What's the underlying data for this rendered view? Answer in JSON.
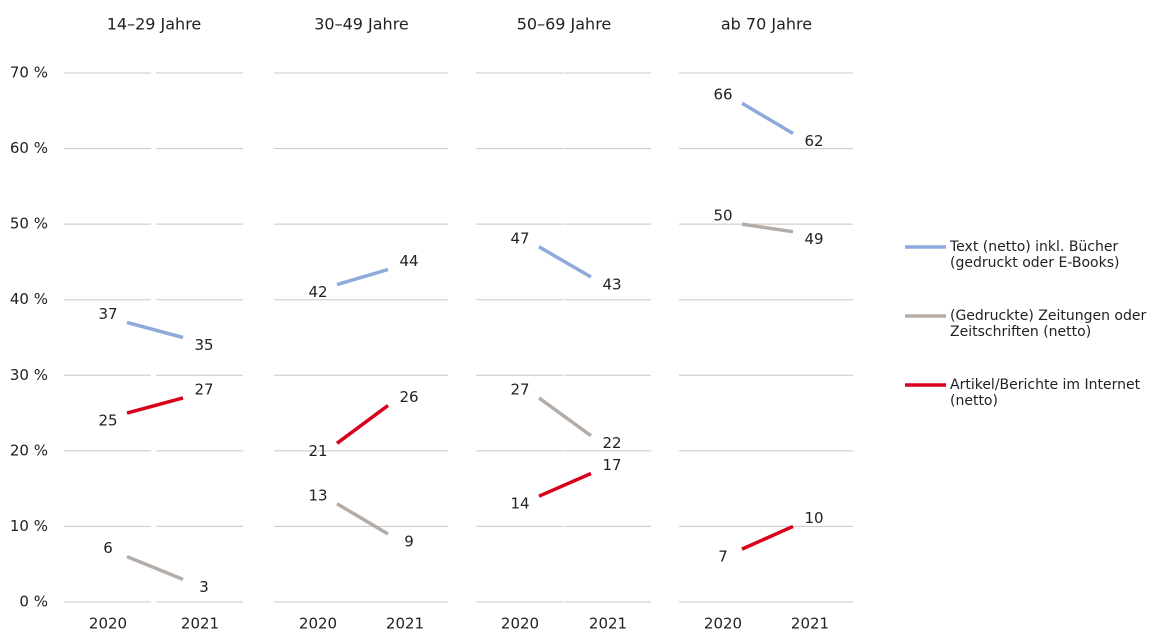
{
  "chart_data": {
    "type": "line",
    "categories": [
      "2020",
      "2021"
    ],
    "ylim": [
      0,
      70
    ],
    "yticks": [
      {
        "value": 0,
        "label": "0 %"
      },
      {
        "value": 10,
        "label": "10 %"
      },
      {
        "value": 20,
        "label": "20 %"
      },
      {
        "value": 30,
        "label": "30 %"
      },
      {
        "value": 40,
        "label": "40 %"
      },
      {
        "value": 50,
        "label": "50 %"
      },
      {
        "value": 60,
        "label": "60 %"
      },
      {
        "value": 70,
        "label": "70 %"
      }
    ],
    "grid": true,
    "series": [
      {
        "name": "Text (netto) inkl. Bücher (gedruckt oder E-Books)",
        "color": "#8eaadb"
      },
      {
        "name": "(Gedruckte) Zeitungen oder Zeitschriften (netto)",
        "color": "#b5aca6"
      },
      {
        "name": "Artikel/Berichte im Internet (netto)",
        "color": "#d9001b"
      }
    ],
    "panels": [
      {
        "title": "14–29 Jahre",
        "values": [
          [
            37,
            35
          ],
          [
            6,
            3
          ],
          [
            25,
            27
          ]
        ]
      },
      {
        "title": "30–49 Jahre",
        "values": [
          [
            42,
            44
          ],
          [
            13,
            9
          ],
          [
            21,
            26
          ]
        ]
      },
      {
        "title": "50–69 Jahre",
        "values": [
          [
            47,
            43
          ],
          [
            27,
            22
          ],
          [
            14,
            17
          ]
        ]
      },
      {
        "title": "ab 70 Jahre",
        "values": [
          [
            66,
            62
          ],
          [
            50,
            49
          ],
          [
            7,
            10
          ]
        ]
      }
    ]
  }
}
